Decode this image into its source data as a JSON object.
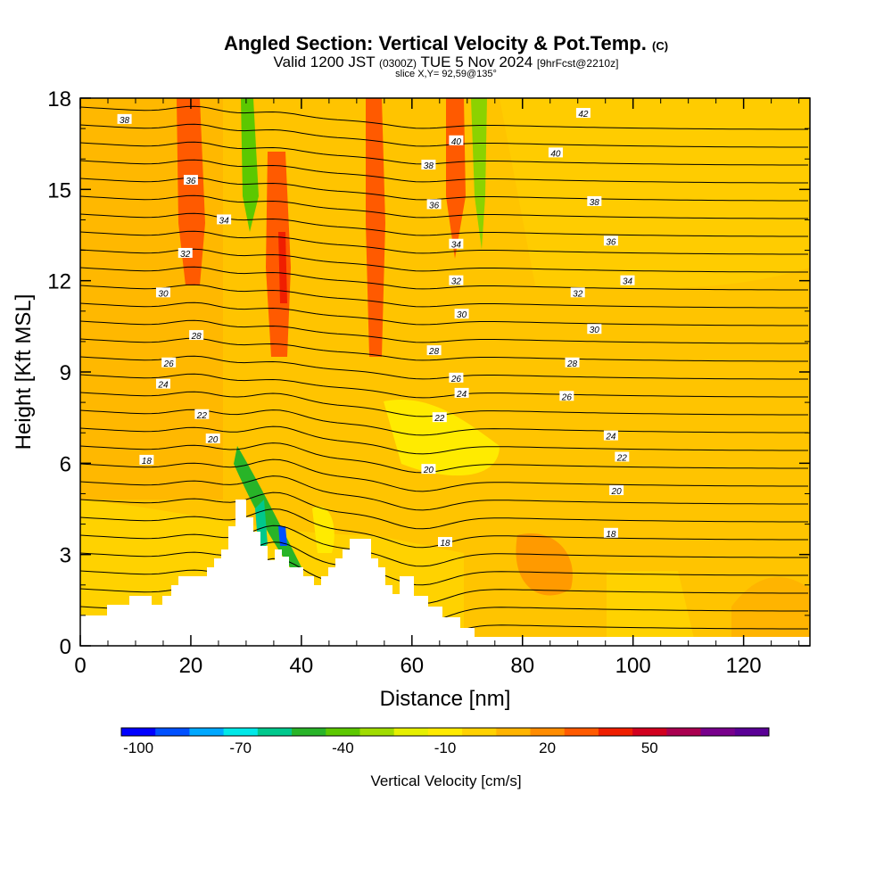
{
  "header": {
    "title_main": "Angled Section: Vertical Velocity & Pot.Temp.",
    "title_unit": "(C)",
    "valid_main1": "Valid 1200 JST",
    "valid_small1": "(0300Z)",
    "valid_main2": "TUE 5 Nov 2024",
    "valid_small2": "[9hrFcst@2210z]",
    "slice": "slice X,Y= 92,59@135°"
  },
  "chart_data": {
    "type": "heatmap",
    "xlabel": "Distance [nm]",
    "ylabel": "Height [Kft MSL]",
    "xlim": [
      0,
      132
    ],
    "ylim": [
      0,
      18
    ],
    "x_ticks": [
      0,
      20,
      40,
      60,
      80,
      100,
      120
    ],
    "y_ticks": [
      0,
      3,
      6,
      9,
      12,
      15,
      18
    ],
    "colorbar": {
      "label": "Vertical Velocity [cm/s]",
      "tick_labels": [
        "-100",
        "-70",
        "-40",
        "-10",
        "20",
        "50"
      ],
      "tick_values": [
        -100,
        -70,
        -40,
        -10,
        20,
        50
      ],
      "colors": [
        "#0000ff",
        "#0050ff",
        "#00a8ff",
        "#00e8e8",
        "#00c88c",
        "#28b428",
        "#5cc800",
        "#a0dc00",
        "#e6f000",
        "#ffeb00",
        "#ffd200",
        "#ffb400",
        "#ff8c00",
        "#ff5a00",
        "#f01e00",
        "#d2001e",
        "#aa0050",
        "#78008c",
        "#5a0096"
      ]
    },
    "theta_contour_labels": [
      {
        "x": 8,
        "y": 17.3,
        "label": "38"
      },
      {
        "x": 20,
        "y": 15.3,
        "label": "36"
      },
      {
        "x": 26,
        "y": 14.0,
        "label": "34"
      },
      {
        "x": 19,
        "y": 12.9,
        "label": "32"
      },
      {
        "x": 15,
        "y": 11.6,
        "label": "30"
      },
      {
        "x": 21,
        "y": 10.2,
        "label": "28"
      },
      {
        "x": 16,
        "y": 9.3,
        "label": "26"
      },
      {
        "x": 15,
        "y": 8.6,
        "label": "24"
      },
      {
        "x": 22,
        "y": 7.6,
        "label": "22"
      },
      {
        "x": 24,
        "y": 6.8,
        "label": "20"
      },
      {
        "x": 12,
        "y": 6.1,
        "label": "18"
      },
      {
        "x": 68,
        "y": 16.6,
        "label": "40"
      },
      {
        "x": 63,
        "y": 15.8,
        "label": "38"
      },
      {
        "x": 64,
        "y": 14.5,
        "label": "36"
      },
      {
        "x": 68,
        "y": 13.2,
        "label": "34"
      },
      {
        "x": 68,
        "y": 12.0,
        "label": "32"
      },
      {
        "x": 69,
        "y": 10.9,
        "label": "30"
      },
      {
        "x": 64,
        "y": 9.7,
        "label": "28"
      },
      {
        "x": 68,
        "y": 8.8,
        "label": "26"
      },
      {
        "x": 69,
        "y": 8.3,
        "label": "24"
      },
      {
        "x": 65,
        "y": 7.5,
        "label": "22"
      },
      {
        "x": 63,
        "y": 5.8,
        "label": "20"
      },
      {
        "x": 66,
        "y": 3.4,
        "label": "18"
      },
      {
        "x": 91,
        "y": 17.5,
        "label": "42"
      },
      {
        "x": 86,
        "y": 16.2,
        "label": "40"
      },
      {
        "x": 93,
        "y": 14.6,
        "label": "38"
      },
      {
        "x": 96,
        "y": 13.3,
        "label": "36"
      },
      {
        "x": 99,
        "y": 12.0,
        "label": "34"
      },
      {
        "x": 90,
        "y": 11.6,
        "label": "32"
      },
      {
        "x": 93,
        "y": 10.4,
        "label": "30"
      },
      {
        "x": 89,
        "y": 9.3,
        "label": "28"
      },
      {
        "x": 88,
        "y": 8.2,
        "label": "26"
      },
      {
        "x": 96,
        "y": 6.9,
        "label": "24"
      },
      {
        "x": 98,
        "y": 6.2,
        "label": "22"
      },
      {
        "x": 97,
        "y": 5.1,
        "label": "20"
      },
      {
        "x": 96,
        "y": 3.7,
        "label": "18"
      }
    ]
  }
}
